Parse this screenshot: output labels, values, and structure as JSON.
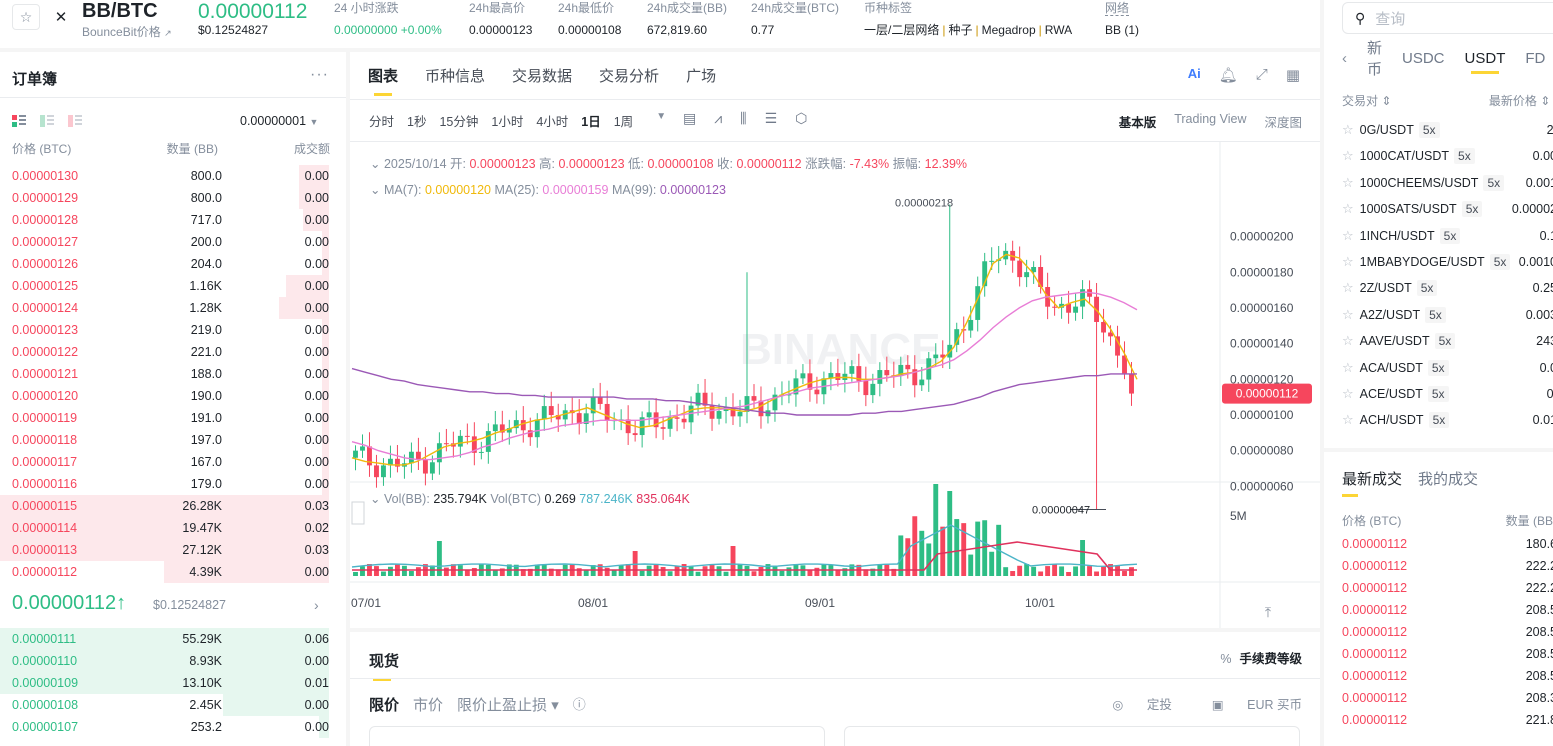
{
  "header": {
    "pair": "BB/BTC",
    "pair_sub": "BounceBit价格",
    "last_price": "0.00000112",
    "last_usd": "$0.12524827",
    "stats": [
      {
        "label": "24 小时涨跌",
        "value": "0.00000000 +0.00%"
      },
      {
        "label": "24h最高价",
        "value": "0.00000123"
      },
      {
        "label": "24h最低价",
        "value": "0.00000108"
      },
      {
        "label": "24h成交量(BB)",
        "value": "672,819.60"
      },
      {
        "label": "24h成交量(BTC)",
        "value": "0.77"
      }
    ],
    "tags_label": "币种标签",
    "tags": [
      "一层/二层网络",
      "种子",
      "Megadrop",
      "RWA"
    ],
    "network_label": "网络",
    "network_value": "BB (1)"
  },
  "orderbook": {
    "title": "订单簿",
    "precision": "0.00000001",
    "col_price": "价格 (BTC)",
    "col_qty": "数量 (BB)",
    "col_total": "成交额",
    "asks": [
      {
        "price": "0.00000130",
        "qty": "800.0",
        "total": "0.00",
        "depth": 0.09
      },
      {
        "price": "0.00000129",
        "qty": "800.0",
        "total": "0.00",
        "depth": 0.09
      },
      {
        "price": "0.00000128",
        "qty": "717.0",
        "total": "0.00",
        "depth": 0.08
      },
      {
        "price": "0.00000127",
        "qty": "200.0",
        "total": "0.00",
        "depth": 0.02
      },
      {
        "price": "0.00000126",
        "qty": "204.0",
        "total": "0.00",
        "depth": 0.02
      },
      {
        "price": "0.00000125",
        "qty": "1.16K",
        "total": "0.00",
        "depth": 0.13
      },
      {
        "price": "0.00000124",
        "qty": "1.28K",
        "total": "0.00",
        "depth": 0.15
      },
      {
        "price": "0.00000123",
        "qty": "219.0",
        "total": "0.00",
        "depth": 0.02
      },
      {
        "price": "0.00000122",
        "qty": "221.0",
        "total": "0.00",
        "depth": 0.02
      },
      {
        "price": "0.00000121",
        "qty": "188.0",
        "total": "0.00",
        "depth": 0.02
      },
      {
        "price": "0.00000120",
        "qty": "190.0",
        "total": "0.00",
        "depth": 0.02
      },
      {
        "price": "0.00000119",
        "qty": "191.0",
        "total": "0.00",
        "depth": 0.02
      },
      {
        "price": "0.00000118",
        "qty": "197.0",
        "total": "0.00",
        "depth": 0.02
      },
      {
        "price": "0.00000117",
        "qty": "167.0",
        "total": "0.00",
        "depth": 0.02
      },
      {
        "price": "0.00000116",
        "qty": "179.0",
        "total": "0.00",
        "depth": 0.02
      },
      {
        "price": "0.00000115",
        "qty": "26.28K",
        "total": "0.03",
        "depth": 1.0
      },
      {
        "price": "0.00000114",
        "qty": "19.47K",
        "total": "0.02",
        "depth": 1.0
      },
      {
        "price": "0.00000113",
        "qty": "27.12K",
        "total": "0.03",
        "depth": 1.0
      },
      {
        "price": "0.00000112",
        "qty": "4.39K",
        "total": "0.00",
        "depth": 0.5
      }
    ],
    "mid_price": "0.00000112↑",
    "mid_usd": "$0.12524827",
    "bids": [
      {
        "price": "0.00000111",
        "qty": "55.29K",
        "total": "0.06",
        "depth": 1.0
      },
      {
        "price": "0.00000110",
        "qty": "8.93K",
        "total": "0.00",
        "depth": 1.0
      },
      {
        "price": "0.00000109",
        "qty": "13.10K",
        "total": "0.01",
        "depth": 1.0
      },
      {
        "price": "0.00000108",
        "qty": "2.45K",
        "total": "0.00",
        "depth": 0.32
      },
      {
        "price": "0.00000107",
        "qty": "253.2",
        "total": "0.00",
        "depth": 0.03
      }
    ]
  },
  "chart": {
    "tabs": [
      "图表",
      "币种信息",
      "交易数据",
      "交易分析",
      "广场"
    ],
    "intervals": [
      "分时",
      "1秒",
      "15分钟",
      "1小时",
      "4小时",
      "1日",
      "1周"
    ],
    "active_interval": "1日",
    "views": [
      "基本版",
      "Trading View",
      "深度图"
    ],
    "ohlc": {
      "date": "2025/10/14",
      "open_label": "开:",
      "open": "0.00000123",
      "high_label": "高:",
      "high": "0.00000123",
      "low_label": "低:",
      "low": "0.00000108",
      "close_label": "收:",
      "close": "0.00000112",
      "change_label": "涨跌幅:",
      "change": "-7.43%",
      "amp_label": "振幅:",
      "amp": "12.39%"
    },
    "ma": {
      "ma7_label": "MA(7):",
      "ma7": "0.00000120",
      "ma25_label": "MA(25):",
      "ma25": "0.00000159",
      "ma99_label": "MA(99):",
      "ma99": "0.00000123"
    },
    "vol": {
      "bb_label": "Vol(BB):",
      "bb": "235.794K",
      "btc_label": "Vol(BTC)",
      "btc": "0.269",
      "v1": "787.246K",
      "v2": "835.064K"
    },
    "price_badge": "0.00000112",
    "high_mark": "0.00000218",
    "low_mark": "0.00000047",
    "vol_tick": "5M",
    "colors": {
      "up": "#2ebd85",
      "down": "#f6465d",
      "ma7": "#f0b90b",
      "ma25": "#e87dd6",
      "ma99": "#9b59b6"
    }
  },
  "chart_data": {
    "type": "line",
    "title": "",
    "x_ticks": [
      "07/01",
      "08/01",
      "09/01",
      "10/01"
    ],
    "y_ticks": [
      "0.00000200",
      "0.00000180",
      "0.00000160",
      "0.00000140",
      "0.00000120",
      "0.00000100",
      "0.00000080",
      "0.00000060"
    ],
    "y_tick_values": [
      200,
      180,
      160,
      140,
      120,
      100,
      80,
      60
    ],
    "ylim": [
      47,
      220
    ],
    "series": [
      {
        "name": "MA(7)",
        "values": [
          76,
          74,
          73,
          72,
          72,
          74,
          78,
          82,
          84,
          85,
          87,
          90,
          92,
          95,
          97,
          98,
          100,
          102,
          104,
          101,
          98,
          95,
          93,
          94,
          97,
          100,
          103,
          104,
          104,
          103,
          102,
          104,
          108,
          112,
          115,
          118,
          120,
          121,
          121,
          120,
          120,
          121,
          123,
          124,
          126,
          130,
          138,
          152,
          168,
          185,
          190,
          188,
          180,
          168,
          160,
          163,
          165,
          158,
          148,
          135,
          120
        ]
      },
      {
        "name": "MA(25)",
        "values": [
          85,
          83,
          80,
          78,
          76,
          75,
          75,
          76,
          77,
          79,
          82,
          84,
          87,
          89,
          91,
          92,
          94,
          95,
          96,
          97,
          97,
          97,
          97,
          98,
          99,
          100,
          101,
          102,
          103,
          104,
          105,
          107,
          109,
          111,
          113,
          115,
          116,
          117,
          118,
          119,
          120,
          121,
          122,
          124,
          126,
          128,
          131,
          136,
          142,
          149,
          155,
          160,
          164,
          166,
          167,
          168,
          169,
          168,
          166,
          163,
          159
        ]
      },
      {
        "name": "MA(99)",
        "values": [
          126,
          124,
          122,
          120,
          119,
          117,
          116,
          115,
          114,
          113,
          113,
          112,
          112,
          111,
          111,
          110,
          110,
          110,
          110,
          110,
          110,
          109,
          109,
          109,
          108,
          108,
          107,
          106,
          105,
          104,
          103,
          102,
          101,
          101,
          100,
          100,
          100,
          100,
          100,
          101,
          101,
          102,
          102,
          103,
          104,
          105,
          106,
          108,
          110,
          113,
          115,
          117,
          118,
          119,
          120,
          121,
          122,
          122,
          123,
          123,
          123
        ]
      }
    ]
  },
  "spot": {
    "title": "现货",
    "fee": "手续费等级",
    "order_types": [
      "限价",
      "市价",
      "限价止盈止损 ▾"
    ],
    "right_links": [
      "定投",
      "EUR 买币"
    ]
  },
  "market": {
    "search_placeholder": "查询",
    "tabs": [
      "新币",
      "USDC",
      "USDT",
      "FD"
    ],
    "col_pair": "交易对",
    "col_price": "最新价格",
    "rows": [
      {
        "pair": "0G/USDT",
        "lev": "5x",
        "price": "2."
      },
      {
        "pair": "1000CAT/USDT",
        "lev": "5x",
        "price": "0.00"
      },
      {
        "pair": "1000CHEEMS/USDT",
        "lev": "5x",
        "price": "0.001"
      },
      {
        "pair": "1000SATS/USDT",
        "lev": "5x",
        "price": "0.00002"
      },
      {
        "pair": "1INCH/USDT",
        "lev": "5x",
        "price": "0.1"
      },
      {
        "pair": "1MBABYDOGE/USDT",
        "lev": "5x",
        "price": "0.0010"
      },
      {
        "pair": "2Z/USDT",
        "lev": "5x",
        "price": "0.25"
      },
      {
        "pair": "A2Z/USDT",
        "lev": "5x",
        "price": "0.003"
      },
      {
        "pair": "AAVE/USDT",
        "lev": "5x",
        "price": "243"
      },
      {
        "pair": "ACA/USDT",
        "lev": "5x",
        "price": "0.0"
      },
      {
        "pair": "ACE/USDT",
        "lev": "5x",
        "price": "0."
      },
      {
        "pair": "ACH/USDT",
        "lev": "5x",
        "price": "0.01"
      }
    ]
  },
  "trades": {
    "tabs": [
      "最新成交",
      "我的成交"
    ],
    "col_price": "价格 (BTC)",
    "col_qty": "数量 (BB)",
    "rows": [
      {
        "price": "0.00000112",
        "qty": "180.6"
      },
      {
        "price": "0.00000112",
        "qty": "222.2"
      },
      {
        "price": "0.00000112",
        "qty": "222.2"
      },
      {
        "price": "0.00000112",
        "qty": "208.5"
      },
      {
        "price": "0.00000112",
        "qty": "208.5"
      },
      {
        "price": "0.00000112",
        "qty": "208.5"
      },
      {
        "price": "0.00000112",
        "qty": "208.5"
      },
      {
        "price": "0.00000112",
        "qty": "208.3"
      },
      {
        "price": "0.00000112",
        "qty": "221.8"
      }
    ]
  }
}
